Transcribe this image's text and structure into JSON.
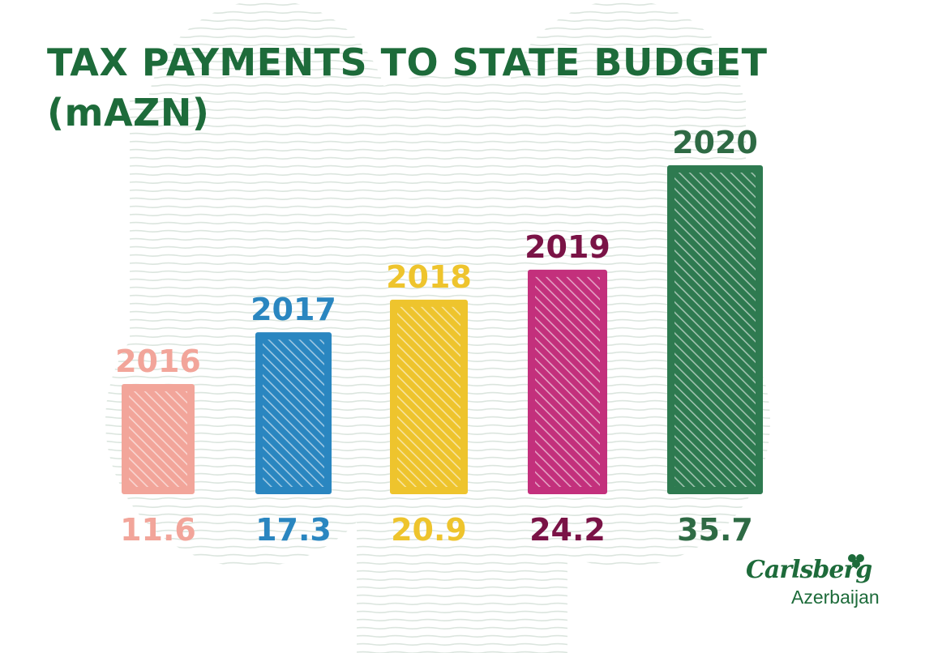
{
  "title": {
    "line1": "TAX PAYMENTS TO STATE BUDGET",
    "line2": "(mAZN)"
  },
  "logo": {
    "brand": "Carlsberg",
    "region": "Azerbaijan"
  },
  "colors": {
    "title": "#1d6b3a",
    "stripe": "#dbe5de",
    "bars": [
      "#f2a59a",
      "#2a86c0",
      "#eec42d",
      "#c3307c",
      "#2e7a50"
    ],
    "year_labels": [
      "#f2a59a",
      "#2a86c0",
      "#eec42d",
      "#7a1346",
      "#2e6a44"
    ],
    "value_labels": [
      "#f2a59a",
      "#2a86c0",
      "#eec42d",
      "#7a1346",
      "#2e6a44"
    ]
  },
  "chart_data": {
    "type": "bar",
    "categories": [
      "2016",
      "2017",
      "2018",
      "2019",
      "2020"
    ],
    "values": [
      11.6,
      17.3,
      20.9,
      24.2,
      35.7
    ],
    "value_labels": [
      "11.6",
      "17.3",
      "20.9",
      "24.2",
      "35.7"
    ],
    "title": "TAX PAYMENTS TO STATE BUDGET (mAZN)",
    "xlabel": "",
    "ylabel": "",
    "grid": false,
    "legend": "none"
  }
}
